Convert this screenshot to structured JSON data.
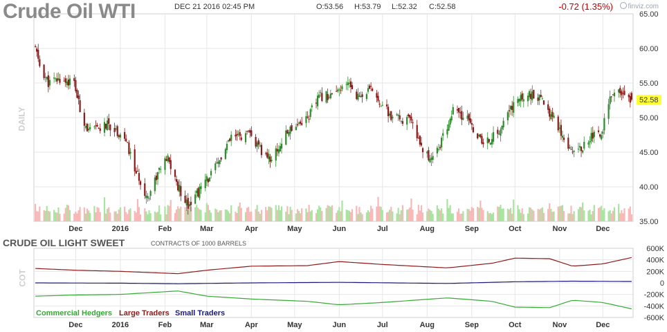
{
  "header": {
    "title": "Crude Oil WTI",
    "date": "DEC 21 2016 02:45 PM",
    "open": "O:53.56",
    "high": "H:53.79",
    "low": "L:52.32",
    "close": "C:52.58",
    "change": "-0.72 (1.35%)",
    "logo": "finviz.com"
  },
  "price_panel": {
    "side_label": "DAILY",
    "last_price_label": "52.58"
  },
  "cot_panel": {
    "title": "CRUDE OIL LIGHT SWEET",
    "subtitle": "CONTRACTS OF 1000 BARRELS",
    "side_label": "COT",
    "legend": {
      "commercial": "Commercial Hedgers",
      "large": "Large Traders",
      "small": "Small Traders"
    }
  },
  "colors": {
    "up": "#2e8b2e",
    "down": "#8b1a1a",
    "volume_up": "#a8e4a0",
    "volume_down": "#f8b8b8",
    "commercial": "#33aa33",
    "large": "#8b1a1a",
    "small": "#1a1a7a",
    "last_price_bg": "#ffff33",
    "change": "#c00000"
  },
  "chart_data": [
    {
      "type": "line",
      "series_kind": "candlestick",
      "y_ticks": [
        "65.00",
        "60.00",
        "55.00",
        "50.00",
        "45.00",
        "40.00",
        "35.00"
      ],
      "ylim": [
        35,
        65
      ],
      "x_labels": [
        "Dec",
        "2016",
        "Feb",
        "Mar",
        "Apr",
        "May",
        "Jun",
        "Jul",
        "Aug",
        "Sep",
        "Oct",
        "Nov",
        "Dec"
      ],
      "x_dates": [
        "2015-12-01",
        "2016-01-01",
        "2016-02-01",
        "2016-03-01",
        "2016-04-01",
        "2016-05-01",
        "2016-06-01",
        "2016-07-01",
        "2016-08-01",
        "2016-09-01",
        "2016-10-01",
        "2016-11-01",
        "2016-12-01"
      ],
      "close_profile": {
        "dates": [
          "2015-11-03",
          "2015-11-06",
          "2015-11-12",
          "2015-11-20",
          "2015-11-30",
          "2015-12-04",
          "2015-12-10",
          "2015-12-18",
          "2015-12-24",
          "2016-01-04",
          "2016-01-12",
          "2016-01-20",
          "2016-01-28",
          "2016-02-03",
          "2016-02-10",
          "2016-02-17",
          "2016-02-25",
          "2016-03-08",
          "2016-03-18",
          "2016-03-31",
          "2016-04-08",
          "2016-04-15",
          "2016-04-28",
          "2016-05-10",
          "2016-05-18",
          "2016-05-31",
          "2016-06-08",
          "2016-06-14",
          "2016-06-24",
          "2016-07-07",
          "2016-07-20",
          "2016-08-02",
          "2016-08-10",
          "2016-08-19",
          "2016-08-30",
          "2016-09-09",
          "2016-09-20",
          "2016-09-30",
          "2016-10-10",
          "2016-10-19",
          "2016-10-28",
          "2016-11-07",
          "2016-11-14",
          "2016-11-23",
          "2016-11-30",
          "2016-12-05",
          "2016-12-12",
          "2016-12-21"
        ],
        "close": [
          60.0,
          57.5,
          55.0,
          55.5,
          55.0,
          51.0,
          48.0,
          48.5,
          49.0,
          47.0,
          42.0,
          38.5,
          42.5,
          44.0,
          40.0,
          37.5,
          39.5,
          43.0,
          47.0,
          47.5,
          45.0,
          44.0,
          48.5,
          50.0,
          53.0,
          53.5,
          55.0,
          53.0,
          54.0,
          50.0,
          49.5,
          44.0,
          46.0,
          51.0,
          49.5,
          46.0,
          48.0,
          52.0,
          53.5,
          52.5,
          50.0,
          46.0,
          45.0,
          47.5,
          47.5,
          52.5,
          53.5,
          52.58
        ]
      },
      "last": {
        "open": 53.56,
        "high": 53.79,
        "low": 52.32,
        "close": 52.58
      }
    },
    {
      "type": "line",
      "title": "CRUDE OIL LIGHT SWEET",
      "subtitle": "CONTRACTS OF 1000 BARRELS",
      "y_ticks": [
        "600K",
        "400K",
        "200K",
        "0",
        "-200K",
        "-400K",
        "-600K"
      ],
      "ylim": [
        -600,
        600
      ],
      "x_labels": [
        "Dec",
        "2016",
        "Feb",
        "Mar",
        "Apr",
        "May",
        "Jun",
        "Jul",
        "Aug",
        "Sep",
        "Oct",
        "Nov",
        "Dec"
      ],
      "series": [
        {
          "name": "Large Traders",
          "dates": [
            "2015-11-03",
            "2015-12-01",
            "2016-01-01",
            "2016-02-10",
            "2016-03-01",
            "2016-04-01",
            "2016-05-10",
            "2016-06-01",
            "2016-07-01",
            "2016-08-15",
            "2016-09-15",
            "2016-10-01",
            "2016-10-25",
            "2016-11-10",
            "2016-12-01",
            "2016-12-21"
          ],
          "values": [
            250,
            220,
            200,
            160,
            220,
            290,
            300,
            370,
            320,
            260,
            340,
            430,
            420,
            290,
            330,
            440
          ]
        },
        {
          "name": "Small Traders",
          "dates": [
            "2015-11-03",
            "2016-01-01",
            "2016-02-10",
            "2016-04-01",
            "2016-06-01",
            "2016-08-15",
            "2016-10-01",
            "2016-11-10",
            "2016-12-21"
          ],
          "values": [
            0,
            -5,
            -15,
            0,
            10,
            -10,
            20,
            30,
            25
          ]
        },
        {
          "name": "Commercial Hedgers",
          "dates": [
            "2015-11-03",
            "2015-12-01",
            "2016-01-01",
            "2016-02-10",
            "2016-03-01",
            "2016-04-01",
            "2016-05-10",
            "2016-06-01",
            "2016-07-01",
            "2016-08-15",
            "2016-09-15",
            "2016-10-01",
            "2016-10-25",
            "2016-11-10",
            "2016-12-01",
            "2016-12-21"
          ],
          "values": [
            -230,
            -210,
            -200,
            -140,
            -230,
            -280,
            -320,
            -380,
            -340,
            -260,
            -320,
            -420,
            -430,
            -300,
            -340,
            -450
          ]
        }
      ]
    }
  ]
}
